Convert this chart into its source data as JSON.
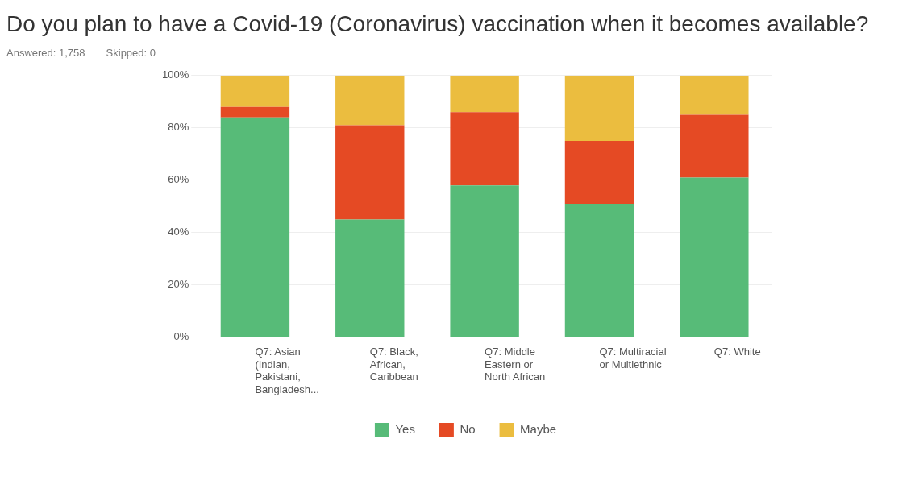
{
  "chart_data": {
    "type": "bar",
    "title": "Do you plan to have a Covid-19 (Coronavirus) vaccination when it becomes available?",
    "annotations": [
      "Answered: 1,758",
      "Skipped: 0"
    ],
    "categories": [
      "Q7: Asian (Indian, Pakistani, Bangladesh...",
      "Q7: Black, African, Caribbean",
      "Q7: Middle Eastern or North African",
      "Q7: Multiracial or Multiethnic",
      "Q7: White"
    ],
    "stacked": true,
    "series": [
      {
        "name": "Yes",
        "color": "#57bb78",
        "values": [
          84,
          45,
          58,
          51,
          61
        ]
      },
      {
        "name": "No",
        "color": "#e54a24",
        "values": [
          4,
          36,
          28,
          24,
          24
        ]
      },
      {
        "name": "Maybe",
        "color": "#ebbd3f",
        "values": [
          12,
          19,
          14,
          25,
          15
        ]
      }
    ],
    "ylim": [
      0,
      100
    ],
    "yticks": [
      {
        "value": 0,
        "label": "0%"
      },
      {
        "value": 20,
        "label": "20%"
      },
      {
        "value": 40,
        "label": "40%"
      },
      {
        "value": 60,
        "label": "60%"
      },
      {
        "value": 80,
        "label": "80%"
      },
      {
        "value": 100,
        "label": "100%"
      }
    ],
    "grid": "y",
    "legend": "bottom"
  }
}
